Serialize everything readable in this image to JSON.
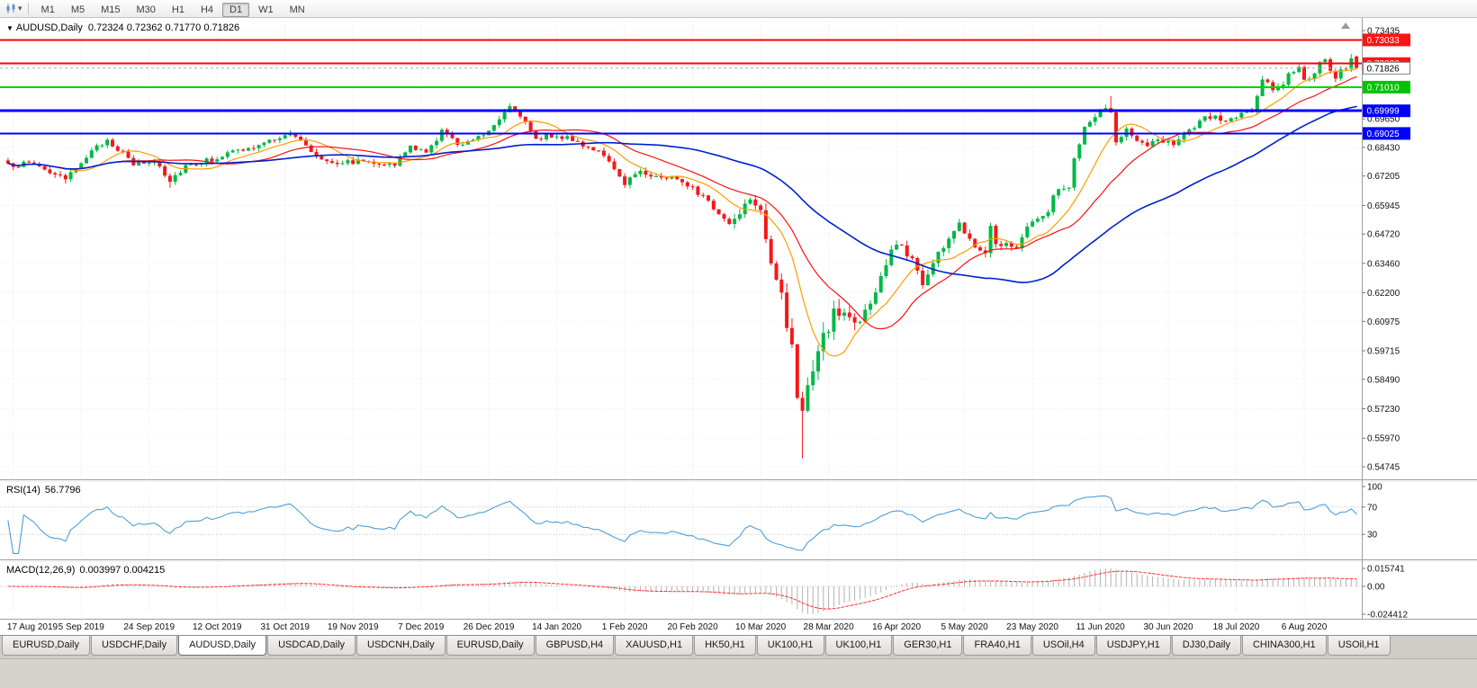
{
  "toolbar": {
    "timeframes": [
      "M1",
      "M5",
      "M15",
      "M30",
      "H1",
      "H4",
      "D1",
      "W1",
      "MN"
    ],
    "active_timeframe": "D1"
  },
  "main_chart": {
    "title": "AUDUSD,Daily",
    "ohlc": "0.72324 0.72362 0.71770 0.71826",
    "open": "0.72324",
    "high": "0.72362",
    "low": "0.71770",
    "close": "0.71826"
  },
  "price_axis": {
    "plain_labels": [
      "0.73435",
      "0.69650",
      "0.68430",
      "0.67205",
      "0.65945",
      "0.64720",
      "0.63460",
      "0.62200",
      "0.60975",
      "0.59715",
      "0.58490",
      "0.57230",
      "0.55970",
      "0.54745"
    ],
    "tags": [
      {
        "value": "0.73033",
        "bg": "#ff1414",
        "fg": "#ffffff"
      },
      {
        "value": "0.72022",
        "bg": "#ff1414",
        "fg": "#ffffff"
      },
      {
        "value": "0.71826",
        "bg": "#ffffff",
        "fg": "#000000",
        "border": "#808080"
      },
      {
        "value": "0.71010",
        "bg": "#00c400",
        "fg": "#ffffff"
      },
      {
        "value": "0.69999",
        "bg": "#0000ff",
        "fg": "#ffffff"
      },
      {
        "value": "0.69025",
        "bg": "#0000ff",
        "fg": "#ffffff"
      }
    ]
  },
  "indicators": {
    "rsi": {
      "name": "RSI(14)",
      "value": "56.7796",
      "axis_labels": [
        "100",
        "70",
        "30"
      ],
      "levels": [
        100,
        70,
        30
      ],
      "line_color": "#4f9ed9"
    },
    "macd": {
      "name": "MACD(12,26,9)",
      "value": "0.003997 0.004215",
      "axis_labels": [
        "0.015741",
        "0.00",
        "-0.024412"
      ],
      "max": 0.015741,
      "min": -0.024412,
      "histogram_color": "#b2b2b2",
      "signal_color": "#ff3030"
    }
  },
  "tabs": {
    "items": [
      "EURUSD,Daily",
      "USDCHF,Daily",
      "AUDUSD,Daily",
      "USDCAD,Daily",
      "USDCNH,Daily",
      "EURUSD,Daily",
      "GBPUSD,H4",
      "XAUUSD,H1",
      "HK50,H1",
      "UK100,H1",
      "UK100,H1",
      "GER30,H1",
      "FRA40,H1",
      "USOil,H4",
      "USDJPY,H1",
      "DJ30,Daily",
      "CHINA300,H1",
      "USOil,H1"
    ],
    "active_index": 2
  },
  "chart_data": {
    "type": "candlestick",
    "symbol": "AUDUSD",
    "timeframe": "Daily",
    "title": "AUDUSD,Daily",
    "x_tick_labels": [
      "17 Aug 2019",
      "5 Sep 2019",
      "24 Sep 2019",
      "12 Oct 2019",
      "31 Oct 2019",
      "19 Nov 2019",
      "7 Dec 2019",
      "26 Dec 2019",
      "14 Jan 2020",
      "1 Feb 2020",
      "20 Feb 2020",
      "10 Mar 2020",
      "28 Mar 2020",
      "16 Apr 2020",
      "5 May 2020",
      "23 May 2020",
      "11 Jun 2020",
      "30 Jun 2020",
      "18 Jul 2020",
      "6 Aug 2020"
    ],
    "y_axis_range": [
      0.54745,
      0.73435
    ],
    "candle_count": 259,
    "up_color": "#00b846",
    "down_color": "#f41919",
    "last_candle": {
      "open": 0.72324,
      "high": 0.72362,
      "low": 0.7177,
      "close": 0.71826
    },
    "close_path": [
      [
        0.0,
        0.6765
      ],
      [
        0.019,
        0.6777
      ],
      [
        0.035,
        0.6725
      ],
      [
        0.043,
        0.67
      ],
      [
        0.055,
        0.679
      ],
      [
        0.074,
        0.6878
      ],
      [
        0.093,
        0.677
      ],
      [
        0.11,
        0.6785
      ],
      [
        0.12,
        0.67
      ],
      [
        0.132,
        0.6768
      ],
      [
        0.15,
        0.679
      ],
      [
        0.167,
        0.6824
      ],
      [
        0.185,
        0.6845
      ],
      [
        0.205,
        0.69
      ],
      [
        0.213,
        0.689
      ],
      [
        0.23,
        0.68
      ],
      [
        0.244,
        0.678
      ],
      [
        0.27,
        0.6785
      ],
      [
        0.287,
        0.6764
      ],
      [
        0.298,
        0.685
      ],
      [
        0.31,
        0.6815
      ],
      [
        0.322,
        0.6917
      ],
      [
        0.333,
        0.6855
      ],
      [
        0.355,
        0.6906
      ],
      [
        0.365,
        0.6978
      ],
      [
        0.372,
        0.7022
      ],
      [
        0.38,
        0.6984
      ],
      [
        0.391,
        0.687
      ],
      [
        0.4,
        0.69
      ],
      [
        0.419,
        0.6875
      ],
      [
        0.438,
        0.6827
      ],
      [
        0.457,
        0.6691
      ],
      [
        0.469,
        0.6746
      ],
      [
        0.48,
        0.6715
      ],
      [
        0.496,
        0.6713
      ],
      [
        0.508,
        0.6675
      ],
      [
        0.516,
        0.6625
      ],
      [
        0.535,
        0.6515
      ],
      [
        0.545,
        0.659
      ],
      [
        0.551,
        0.6638
      ],
      [
        0.558,
        0.6583
      ],
      [
        0.566,
        0.635
      ],
      [
        0.57,
        0.629
      ],
      [
        0.575,
        0.615
      ],
      [
        0.581,
        0.599
      ],
      [
        0.585,
        0.578
      ],
      [
        0.589,
        0.5744
      ],
      [
        0.593,
        0.58
      ],
      [
        0.601,
        0.596
      ],
      [
        0.608,
        0.6075
      ],
      [
        0.612,
        0.6125
      ],
      [
        0.62,
        0.6135
      ],
      [
        0.628,
        0.609
      ],
      [
        0.64,
        0.6166
      ],
      [
        0.65,
        0.633
      ],
      [
        0.659,
        0.6435
      ],
      [
        0.671,
        0.6365
      ],
      [
        0.678,
        0.626
      ],
      [
        0.69,
        0.639
      ],
      [
        0.705,
        0.6513
      ],
      [
        0.717,
        0.643
      ],
      [
        0.725,
        0.639
      ],
      [
        0.729,
        0.653
      ],
      [
        0.733,
        0.643
      ],
      [
        0.748,
        0.642
      ],
      [
        0.756,
        0.65
      ],
      [
        0.764,
        0.655
      ],
      [
        0.77,
        0.653
      ],
      [
        0.775,
        0.665
      ],
      [
        0.787,
        0.6667
      ],
      [
        0.791,
        0.6797
      ],
      [
        0.798,
        0.692
      ],
      [
        0.806,
        0.6968
      ],
      [
        0.81,
        0.7015
      ],
      [
        0.818,
        0.6998
      ],
      [
        0.822,
        0.685
      ],
      [
        0.829,
        0.692
      ],
      [
        0.838,
        0.687
      ],
      [
        0.845,
        0.6837
      ],
      [
        0.853,
        0.688
      ],
      [
        0.864,
        0.6864
      ],
      [
        0.872,
        0.6904
      ],
      [
        0.88,
        0.692
      ],
      [
        0.888,
        0.6975
      ],
      [
        0.899,
        0.6965
      ],
      [
        0.903,
        0.695
      ],
      [
        0.911,
        0.6975
      ],
      [
        0.918,
        0.7
      ],
      [
        0.922,
        0.698
      ],
      [
        0.93,
        0.713
      ],
      [
        0.938,
        0.7095
      ],
      [
        0.946,
        0.712
      ],
      [
        0.95,
        0.7158
      ],
      [
        0.957,
        0.719
      ],
      [
        0.961,
        0.7143
      ],
      [
        0.966,
        0.7121
      ],
      [
        0.973,
        0.7198
      ],
      [
        0.977,
        0.723
      ],
      [
        0.981,
        0.7157
      ],
      [
        0.985,
        0.7148
      ],
      [
        0.988,
        0.7165
      ],
      [
        0.993,
        0.718
      ],
      [
        0.996,
        0.722
      ],
      [
        1.0,
        0.71826
      ]
    ],
    "volatility_path": [
      [
        0.0,
        0.0025
      ],
      [
        0.45,
        0.0025
      ],
      [
        0.52,
        0.003
      ],
      [
        0.558,
        0.0045
      ],
      [
        0.57,
        0.0075
      ],
      [
        0.6,
        0.0085
      ],
      [
        0.63,
        0.0055
      ],
      [
        0.68,
        0.004
      ],
      [
        0.75,
        0.003
      ],
      [
        1.0,
        0.0026
      ]
    ],
    "high_pins": [
      [
        0.372,
        0.7032
      ],
      [
        0.818,
        0.7063
      ],
      [
        0.996,
        0.7243
      ]
    ],
    "low_pins": [
      [
        0.043,
        0.6688
      ],
      [
        0.12,
        0.667
      ],
      [
        0.589,
        0.551
      ]
    ],
    "horizontal_lines": [
      {
        "price": 0.73033,
        "color": "#ff0000",
        "width": 2
      },
      {
        "price": 0.72022,
        "color": "#ff0000",
        "width": 2
      },
      {
        "price": 0.7101,
        "color": "#00d000",
        "width": 2
      },
      {
        "price": 0.69999,
        "color": "#0000ff",
        "width": 3
      },
      {
        "price": 0.69025,
        "color": "#0000ff",
        "width": 2
      }
    ],
    "moving_averages": [
      {
        "period": 10,
        "color": "#ff9c00",
        "width": 1.2
      },
      {
        "period": 21,
        "color": "#ff1010",
        "width": 1.2
      },
      {
        "period": 50,
        "color": "#0020d0",
        "width": 1.6
      }
    ],
    "rsi_period": 14,
    "macd_params": [
      12,
      26,
      9
    ]
  }
}
